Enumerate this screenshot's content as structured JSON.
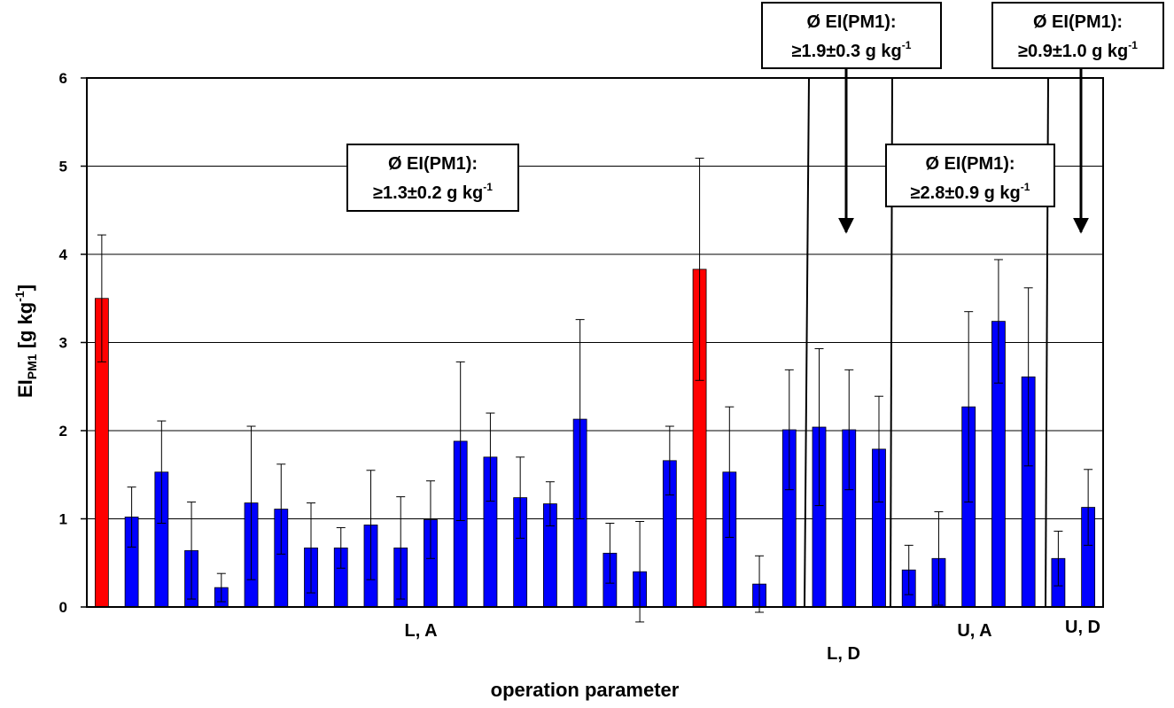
{
  "chart_data": {
    "type": "bar",
    "categories": [
      null,
      null,
      null,
      null,
      null,
      null,
      null,
      null,
      null,
      null,
      null,
      null,
      null,
      null,
      null,
      null,
      null,
      null,
      null,
      null,
      null,
      null,
      null,
      null,
      null,
      null,
      null,
      null,
      null,
      null,
      null,
      null,
      null,
      null
    ],
    "series": [
      {
        "values": [
          3.5,
          1.02,
          1.53,
          0.64,
          0.22,
          1.18,
          1.11,
          0.67,
          0.67,
          0.93,
          0.67,
          0.99,
          1.88,
          1.7,
          1.24,
          1.17,
          2.13,
          0.61,
          0.4,
          1.66,
          3.83,
          1.53,
          0.26,
          2.01,
          2.04,
          2.01,
          1.79,
          0.42,
          0.55,
          2.27,
          3.24,
          2.61,
          0.55,
          1.13
        ],
        "errors": [
          0.72,
          0.34,
          0.58,
          0.55,
          0.16,
          0.87,
          0.51,
          0.51,
          0.23,
          0.62,
          0.58,
          0.44,
          0.9,
          0.5,
          0.46,
          0.25,
          1.13,
          0.34,
          0.57,
          0.39,
          1.26,
          0.74,
          0.32,
          0.68,
          0.89,
          0.68,
          0.6,
          0.28,
          0.53,
          1.08,
          0.7,
          1.01,
          0.31,
          0.43
        ],
        "colors": [
          "#ff0000",
          "#0000ff",
          "#0000ff",
          "#0000ff",
          "#0000ff",
          "#0000ff",
          "#0000ff",
          "#0000ff",
          "#0000ff",
          "#0000ff",
          "#0000ff",
          "#0000ff",
          "#0000ff",
          "#0000ff",
          "#0000ff",
          "#0000ff",
          "#0000ff",
          "#0000ff",
          "#0000ff",
          "#0000ff",
          "#ff0000",
          "#0000ff",
          "#0000ff",
          "#0000ff",
          "#0000ff",
          "#0000ff",
          "#0000ff",
          "#0000ff",
          "#0000ff",
          "#0000ff",
          "#0000ff",
          "#0000ff",
          "#0000ff",
          "#0000ff"
        ]
      }
    ],
    "ylim": [
      0,
      6
    ],
    "yticks": [
      0,
      1,
      2,
      3,
      4,
      5,
      6
    ],
    "grid": true,
    "y_label": {
      "main": "EI",
      "sub": "PM1",
      "rest": " [g kg",
      "sup": "-1",
      "end": "]"
    },
    "x_label": "operation parameter",
    "groups": [
      "L, A",
      "L, D",
      "U, A",
      "U, D"
    ],
    "annotations": [
      {
        "line1": "Ø EI(PM1):",
        "line2": "≥1.3±0.2 g kg",
        "sup": "-1"
      },
      {
        "line1": "Ø EI(PM1):",
        "line2": "≥1.9±0.3 g kg",
        "sup": "-1"
      },
      {
        "line1": "Ø EI(PM1):",
        "line2": "≥2.8±0.9 g kg",
        "sup": "-1"
      },
      {
        "line1": "Ø EI(PM1):",
        "line2": "≥0.9±1.0 g kg",
        "sup": "-1"
      }
    ]
  }
}
